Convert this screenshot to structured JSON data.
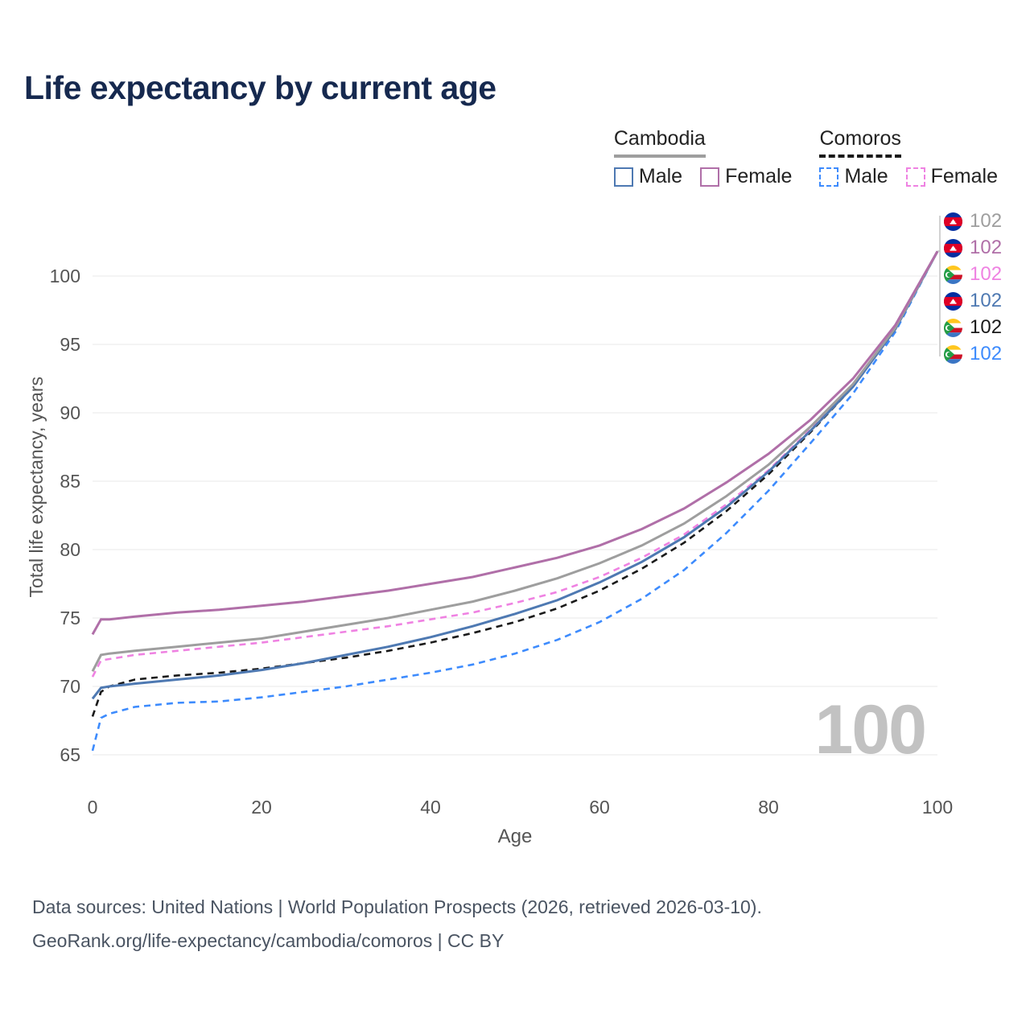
{
  "title": "Life expectancy by current age",
  "legend": {
    "groups": [
      {
        "country": "Cambodia",
        "line_style": "solid",
        "line_color": "#9e9e9e",
        "items": [
          {
            "label": "Male",
            "color": "#4e79b2",
            "dashed": false
          },
          {
            "label": "Female",
            "color": "#b06fa8",
            "dashed": false
          }
        ]
      },
      {
        "country": "Comoros",
        "line_style": "dashed",
        "line_color": "#1a1a1a",
        "items": [
          {
            "label": "Male",
            "color": "#3d8bfd",
            "dashed": true
          },
          {
            "label": "Female",
            "color": "#ef82e2",
            "dashed": true
          }
        ]
      }
    ]
  },
  "watermark_age": "100",
  "chart_data": {
    "type": "line",
    "title": "Life expectancy by current age",
    "xlabel": "Age",
    "ylabel": "Total life expectancy, years",
    "xlim": [
      0,
      100
    ],
    "ylim": [
      65,
      102
    ],
    "x_ticks": [
      0,
      20,
      40,
      60,
      80,
      100
    ],
    "y_ticks": [
      65,
      70,
      75,
      80,
      85,
      90,
      95,
      100
    ],
    "grid": "horizontal",
    "legend_position": "top-right",
    "x": [
      0,
      1,
      2,
      5,
      10,
      15,
      20,
      25,
      30,
      35,
      40,
      45,
      50,
      55,
      60,
      65,
      70,
      75,
      80,
      85,
      90,
      95,
      100
    ],
    "series": [
      {
        "name": "Comoros Male",
        "country": "Comoros",
        "style": "dashed",
        "color": "#3d8bfd",
        "values": [
          65.3,
          67.7,
          68.0,
          68.5,
          68.8,
          68.9,
          69.2,
          69.6,
          70.0,
          70.5,
          71.0,
          71.6,
          72.4,
          73.4,
          74.7,
          76.4,
          78.5,
          81.2,
          84.3,
          87.8,
          91.4,
          95.9,
          101.8
        ]
      },
      {
        "name": "Comoros Both Sexes",
        "country": "Comoros",
        "style": "dashed",
        "color": "#1a1a1a",
        "values": [
          67.8,
          69.6,
          70.0,
          70.5,
          70.8,
          71.0,
          71.3,
          71.7,
          72.1,
          72.6,
          73.2,
          73.9,
          74.7,
          75.7,
          77.0,
          78.6,
          80.5,
          82.8,
          85.5,
          88.6,
          91.9,
          96.1,
          101.8
        ]
      },
      {
        "name": "Comoros Female",
        "country": "Comoros",
        "style": "dashed",
        "color": "#ef82e2",
        "values": [
          70.7,
          71.9,
          72.0,
          72.3,
          72.6,
          72.9,
          73.2,
          73.6,
          74.0,
          74.4,
          74.9,
          75.4,
          76.1,
          76.9,
          78.0,
          79.4,
          81.1,
          83.3,
          85.8,
          88.8,
          92.0,
          96.2,
          101.8
        ]
      },
      {
        "name": "Cambodia Male",
        "country": "Cambodia",
        "style": "solid",
        "color": "#4e79b2",
        "values": [
          69.1,
          69.9,
          70.0,
          70.2,
          70.5,
          70.8,
          71.2,
          71.7,
          72.3,
          72.9,
          73.6,
          74.4,
          75.3,
          76.3,
          77.6,
          79.1,
          80.9,
          83.1,
          85.7,
          88.7,
          91.9,
          96.1,
          101.8
        ]
      },
      {
        "name": "Cambodia Both Sexes",
        "country": "Cambodia",
        "style": "solid",
        "color": "#9e9e9e",
        "values": [
          71.1,
          72.3,
          72.4,
          72.6,
          72.9,
          73.2,
          73.5,
          74.0,
          74.5,
          75.0,
          75.6,
          76.2,
          77.0,
          77.9,
          79.0,
          80.3,
          81.9,
          83.9,
          86.2,
          89.0,
          92.1,
          96.2,
          101.8
        ]
      },
      {
        "name": "Cambodia Female",
        "country": "Cambodia",
        "style": "solid",
        "color": "#b06fa8",
        "values": [
          73.8,
          74.9,
          74.9,
          75.1,
          75.4,
          75.6,
          75.9,
          76.2,
          76.6,
          77.0,
          77.5,
          78.0,
          78.7,
          79.4,
          80.3,
          81.5,
          83.0,
          84.9,
          87.0,
          89.5,
          92.5,
          96.4,
          101.8
        ]
      }
    ]
  },
  "end_labels": [
    {
      "flag": "cambodia",
      "value": "102",
      "color": "#9e9e9e"
    },
    {
      "flag": "cambodia",
      "value": "102",
      "color": "#b06fa8"
    },
    {
      "flag": "comoros",
      "value": "102",
      "color": "#ef82e2"
    },
    {
      "flag": "cambodia",
      "value": "102",
      "color": "#4e79b2"
    },
    {
      "flag": "comoros",
      "value": "102",
      "color": "#1a1a1a"
    },
    {
      "flag": "comoros",
      "value": "102",
      "color": "#3d8bfd"
    }
  ],
  "footer": {
    "line1": "Data sources: United Nations | World Population Prospects (2026, retrieved 2026-03-10).",
    "line2": "GeoRank.org/life-expectancy/cambodia/comoros | CC BY"
  }
}
